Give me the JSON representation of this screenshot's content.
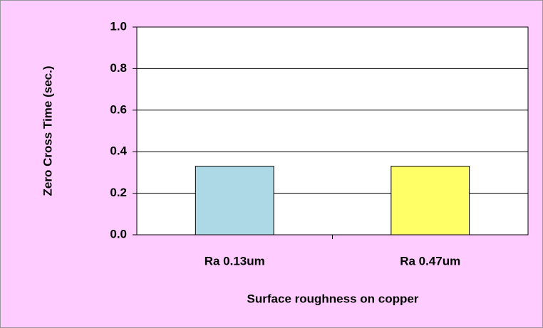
{
  "chart_data": {
    "type": "bar",
    "x_label": "Surface roughness on copper",
    "y_label": "Zero Cross Time (sec.)",
    "categories": [
      "Ra 0.13um",
      "Ra 0.47um"
    ],
    "values": [
      0.33,
      0.33
    ],
    "colors": [
      "#add8e6",
      "#ffff66"
    ],
    "ylim": [
      0,
      1.0
    ],
    "yticks": [
      {
        "value": 0,
        "label": "0.0"
      },
      0.2,
      0.4,
      0.6,
      0.8,
      {
        "value": 1.0,
        "label": "1.0"
      }
    ],
    "grid": true
  }
}
